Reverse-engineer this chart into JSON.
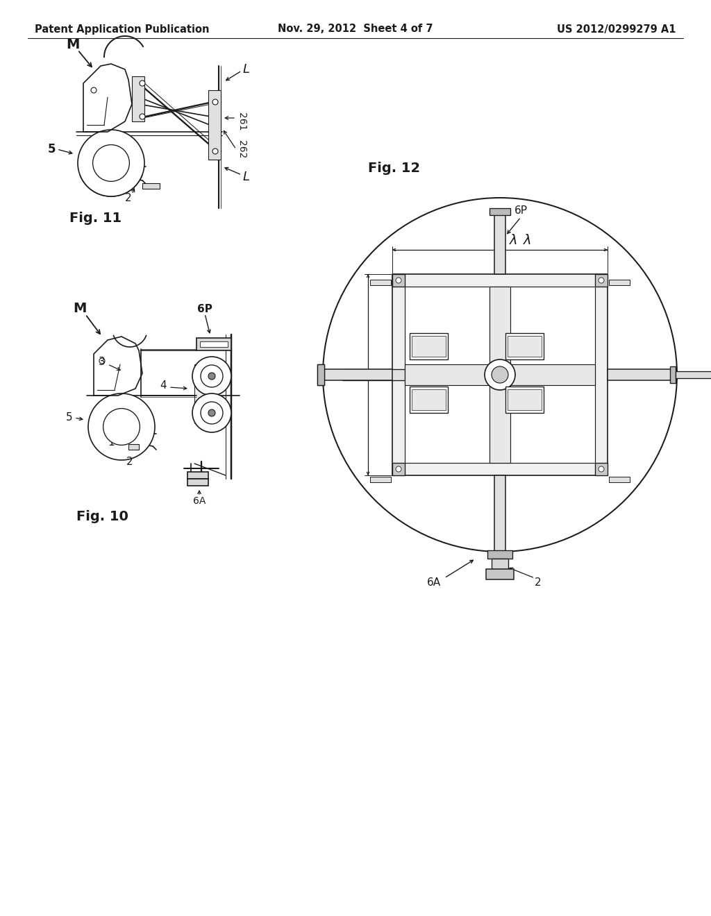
{
  "bg_color": "#ffffff",
  "header_left": "Patent Application Publication",
  "header_center": "Nov. 29, 2012  Sheet 4 of 7",
  "header_right": "US 2012/0299279 A1",
  "line_color": "#1a1a1a",
  "line_width": 1.2,
  "fig11_label": "Fig. 11",
  "fig10_label": "Fig. 10",
  "fig12_label": "Fig. 12"
}
